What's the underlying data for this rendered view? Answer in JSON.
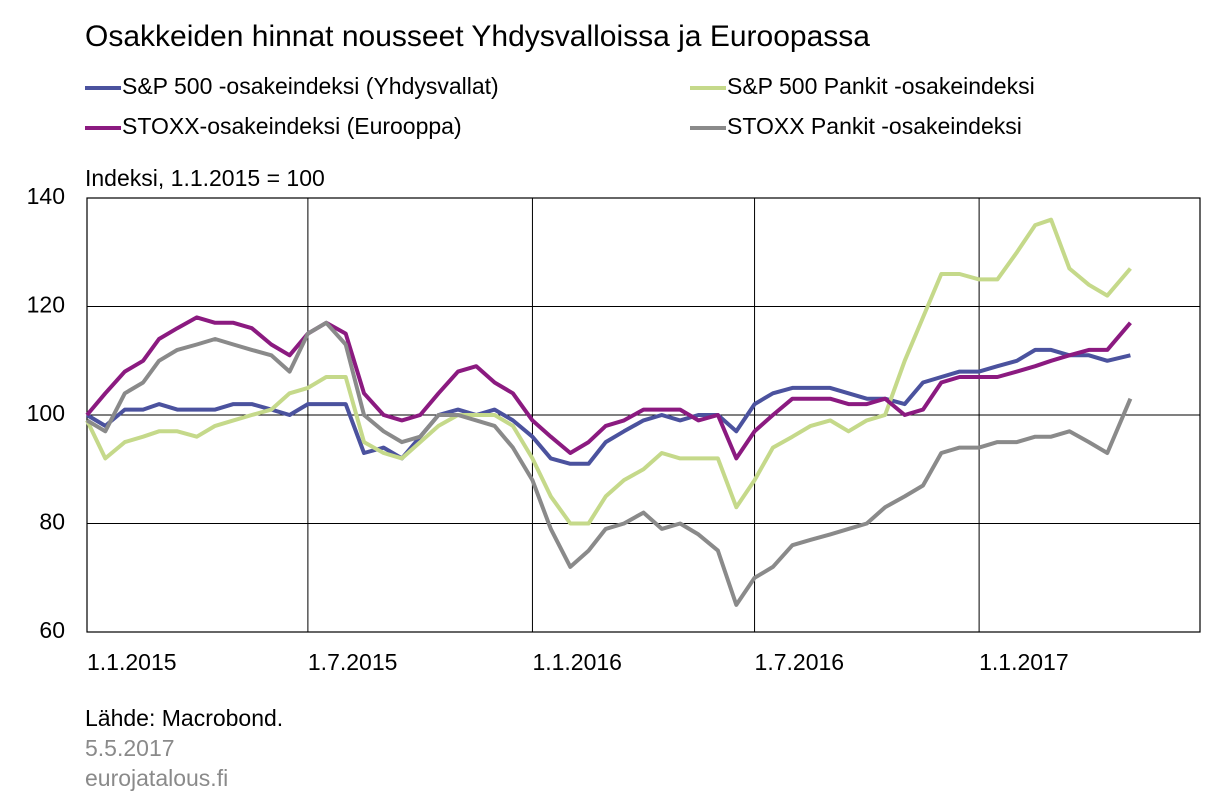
{
  "chart_data": {
    "type": "line",
    "title": "Osakkeiden hinnat nousseet Yhdysvalloissa ja Euroopassa",
    "y_label": "Indeksi, 1.1.2015 = 100",
    "source": "Lähde: Macrobond.",
    "date": "5.5.2017",
    "site": "eurojatalous.fi",
    "x": [
      "2015-01-01",
      "2015-01-16",
      "2015-02-01",
      "2015-02-16",
      "2015-03-01",
      "2015-03-16",
      "2015-04-01",
      "2015-04-16",
      "2015-05-01",
      "2015-05-16",
      "2015-06-01",
      "2015-06-16",
      "2015-07-01",
      "2015-07-16",
      "2015-08-01",
      "2015-08-16",
      "2015-09-01",
      "2015-09-16",
      "2015-10-01",
      "2015-10-16",
      "2015-11-01",
      "2015-11-16",
      "2015-12-01",
      "2015-12-16",
      "2016-01-01",
      "2016-01-16",
      "2016-02-01",
      "2016-02-16",
      "2016-03-01",
      "2016-03-16",
      "2016-04-01",
      "2016-04-16",
      "2016-05-01",
      "2016-05-16",
      "2016-06-01",
      "2016-06-16",
      "2016-07-01",
      "2016-07-16",
      "2016-08-01",
      "2016-08-16",
      "2016-09-01",
      "2016-09-16",
      "2016-10-01",
      "2016-10-16",
      "2016-11-01",
      "2016-11-16",
      "2016-12-01",
      "2016-12-16",
      "2017-01-01",
      "2017-01-16",
      "2017-02-01",
      "2017-02-16",
      "2017-03-01",
      "2017-03-16",
      "2017-04-01",
      "2017-04-16",
      "2017-05-05"
    ],
    "xlim": [
      "2015-01-01",
      "2017-07-01"
    ],
    "xticks": [
      {
        "value": "2015-01-01",
        "label": "1.1.2015"
      },
      {
        "value": "2015-07-01",
        "label": "1.7.2015"
      },
      {
        "value": "2016-01-01",
        "label": "1.1.2016"
      },
      {
        "value": "2016-07-01",
        "label": "1.7.2016"
      },
      {
        "value": "2017-01-01",
        "label": "1.1.2017"
      }
    ],
    "ylim": [
      60,
      140
    ],
    "yticks": [
      60,
      80,
      100,
      120,
      140
    ],
    "grid": true,
    "series": [
      {
        "name": "S&P 500 -osakeindeksi (Yhdysvallat)",
        "color": "#4b529e",
        "values": [
          100,
          98,
          101,
          101,
          102,
          101,
          101,
          101,
          102,
          102,
          101,
          100,
          102,
          102,
          102,
          93,
          94,
          92,
          96,
          100,
          101,
          100,
          101,
          99,
          96,
          92,
          91,
          91,
          95,
          97,
          99,
          100,
          99,
          100,
          100,
          97,
          102,
          104,
          105,
          105,
          105,
          104,
          103,
          103,
          102,
          106,
          107,
          108,
          108,
          109,
          110,
          112,
          112,
          111,
          111,
          110,
          111
        ]
      },
      {
        "name": "S&P 500 Pankit -osakeindeksi",
        "color": "#c5d98a",
        "values": [
          99,
          92,
          95,
          96,
          97,
          97,
          96,
          98,
          99,
          100,
          101,
          104,
          105,
          107,
          107,
          95,
          93,
          92,
          95,
          98,
          100,
          100,
          100,
          98,
          92,
          85,
          80,
          80,
          85,
          88,
          90,
          93,
          92,
          92,
          92,
          83,
          88,
          94,
          96,
          98,
          99,
          97,
          99,
          100,
          110,
          118,
          126,
          126,
          125,
          125,
          130,
          135,
          136,
          127,
          124,
          122,
          127
        ]
      },
      {
        "name": "STOXX-osakeindeksi (Eurooppa)",
        "color": "#8b1a80",
        "values": [
          100,
          104,
          108,
          110,
          114,
          116,
          118,
          117,
          117,
          116,
          113,
          111,
          115,
          117,
          115,
          104,
          100,
          99,
          100,
          104,
          108,
          109,
          106,
          104,
          99,
          96,
          93,
          95,
          98,
          99,
          101,
          101,
          101,
          99,
          100,
          92,
          97,
          100,
          103,
          103,
          103,
          102,
          102,
          103,
          100,
          101,
          106,
          107,
          107,
          107,
          108,
          109,
          110,
          111,
          112,
          112,
          117
        ]
      },
      {
        "name": "STOXX Pankit -osakeindeksi",
        "color": "#8a8a8a",
        "values": [
          99,
          97,
          104,
          106,
          110,
          112,
          113,
          114,
          113,
          112,
          111,
          108,
          115,
          117,
          113,
          100,
          97,
          95,
          96,
          100,
          100,
          99,
          98,
          94,
          88,
          79,
          72,
          75,
          79,
          80,
          82,
          79,
          80,
          78,
          75,
          65,
          70,
          72,
          76,
          77,
          78,
          79,
          80,
          83,
          85,
          87,
          93,
          94,
          94,
          95,
          95,
          96,
          96,
          97,
          95,
          93,
          103
        ]
      }
    ]
  }
}
